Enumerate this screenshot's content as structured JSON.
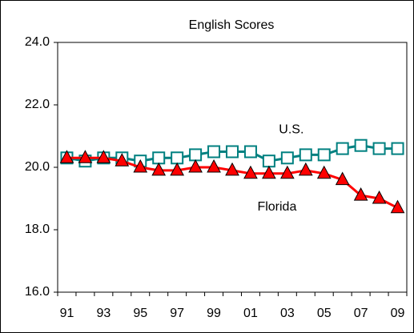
{
  "chart_data": {
    "type": "line",
    "title": "English Scores",
    "categories": [
      "91",
      null,
      "93",
      null,
      "95",
      null,
      "97",
      null,
      "99",
      null,
      "01",
      null,
      "03",
      null,
      "05",
      null,
      "07",
      null,
      "09"
    ],
    "series": [
      {
        "name": "U.S.",
        "color": "#008080",
        "marker": "square",
        "values": [
          20.3,
          20.2,
          20.3,
          20.3,
          20.2,
          20.3,
          20.3,
          20.4,
          20.5,
          20.5,
          20.5,
          20.2,
          20.3,
          20.4,
          20.4,
          20.6,
          20.7,
          20.6,
          20.6
        ]
      },
      {
        "name": "Florida",
        "color": "#ff0000",
        "marker": "triangle",
        "values": [
          20.3,
          20.3,
          20.3,
          20.2,
          20.0,
          19.9,
          19.9,
          20.0,
          20.0,
          19.9,
          19.8,
          19.8,
          19.8,
          19.9,
          19.8,
          19.6,
          19.1,
          19.0,
          18.7
        ]
      }
    ],
    "ylim": [
      16,
      24
    ],
    "yticks": [
      {
        "value": 16,
        "label": "16.0"
      },
      {
        "value": 18,
        "label": "18.0"
      },
      {
        "value": 20,
        "label": "20.0"
      },
      {
        "value": 22,
        "label": "22.0"
      },
      {
        "value": 24,
        "label": "24.0"
      }
    ]
  }
}
